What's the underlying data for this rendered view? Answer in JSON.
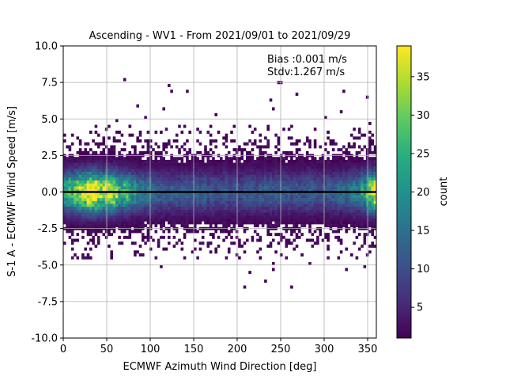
{
  "chart_data": {
    "type": "heatmap",
    "title": "Ascending - WV1 - From 2021/09/01 to 2021/09/29",
    "xlabel": "ECMWF Azimuth Wind Direction [deg]",
    "ylabel": "S-1 A - ECMWF Wind Speed [m/s]",
    "xlim": [
      0,
      360
    ],
    "ylim": [
      -10,
      10
    ],
    "x_ticks": [
      0,
      50,
      100,
      150,
      200,
      250,
      300,
      350
    ],
    "y_ticks": [
      -10.0,
      -7.5,
      -5.0,
      -2.5,
      0.0,
      2.5,
      5.0,
      7.5,
      10.0
    ],
    "grid": true,
    "bin_width_x": 3,
    "bin_width_y": 0.2,
    "zero_line": 0.0,
    "annotations": {
      "bias": "Bias :0.001 m/s",
      "stdv": "Stdv:1.267 m/s"
    },
    "colorbar": {
      "label": "count",
      "colormap": "viridis",
      "range": [
        1,
        39
      ],
      "ticks": [
        5,
        10,
        15,
        20,
        25,
        30,
        35
      ]
    },
    "density_model": {
      "peak_count": 38,
      "peak_direction": 35,
      "core_sigma_speed": 0.9
    },
    "outliers": [
      [
        70,
        7.7
      ],
      [
        122,
        7.3
      ],
      [
        123,
        6.8
      ],
      [
        142,
        6.8
      ],
      [
        248,
        7.4
      ],
      [
        250,
        7.6
      ],
      [
        268,
        6.7
      ],
      [
        322,
        6.8
      ],
      [
        348,
        6.4
      ],
      [
        85,
        5.9
      ],
      [
        115,
        5.7
      ],
      [
        175,
        5.2
      ],
      [
        238,
        6.2
      ],
      [
        240,
        5.7
      ],
      [
        300,
        5.1
      ],
      [
        318,
        5.4
      ],
      [
        351,
        4.8
      ],
      [
        60,
        4.9
      ],
      [
        75,
        4.6
      ],
      [
        95,
        5.0
      ],
      [
        138,
        4.5
      ],
      [
        155,
        4.3
      ],
      [
        170,
        4.4
      ],
      [
        195,
        4.6
      ],
      [
        215,
        4.4
      ],
      [
        235,
        4.2
      ],
      [
        262,
        4.4
      ],
      [
        305,
        4.0
      ],
      [
        112,
        -5.2
      ],
      [
        208,
        -6.5
      ],
      [
        215,
        -5.6
      ],
      [
        232,
        -6.1
      ],
      [
        242,
        -5.4
      ],
      [
        262,
        -6.5
      ],
      [
        325,
        -5.3
      ],
      [
        345,
        -5.2
      ],
      [
        40,
        -3.5
      ],
      [
        90,
        -4.3
      ],
      [
        150,
        -3.9
      ],
      [
        170,
        -3.6
      ],
      [
        185,
        -3.4
      ],
      [
        200,
        -4.3
      ],
      [
        227,
        -4.5
      ],
      [
        240,
        -4.9
      ],
      [
        255,
        -4.5
      ],
      [
        275,
        -4.3
      ],
      [
        283,
        -5.0
      ],
      [
        298,
        -3.4
      ],
      [
        320,
        -3.6
      ],
      [
        342,
        -3.7
      ]
    ]
  }
}
